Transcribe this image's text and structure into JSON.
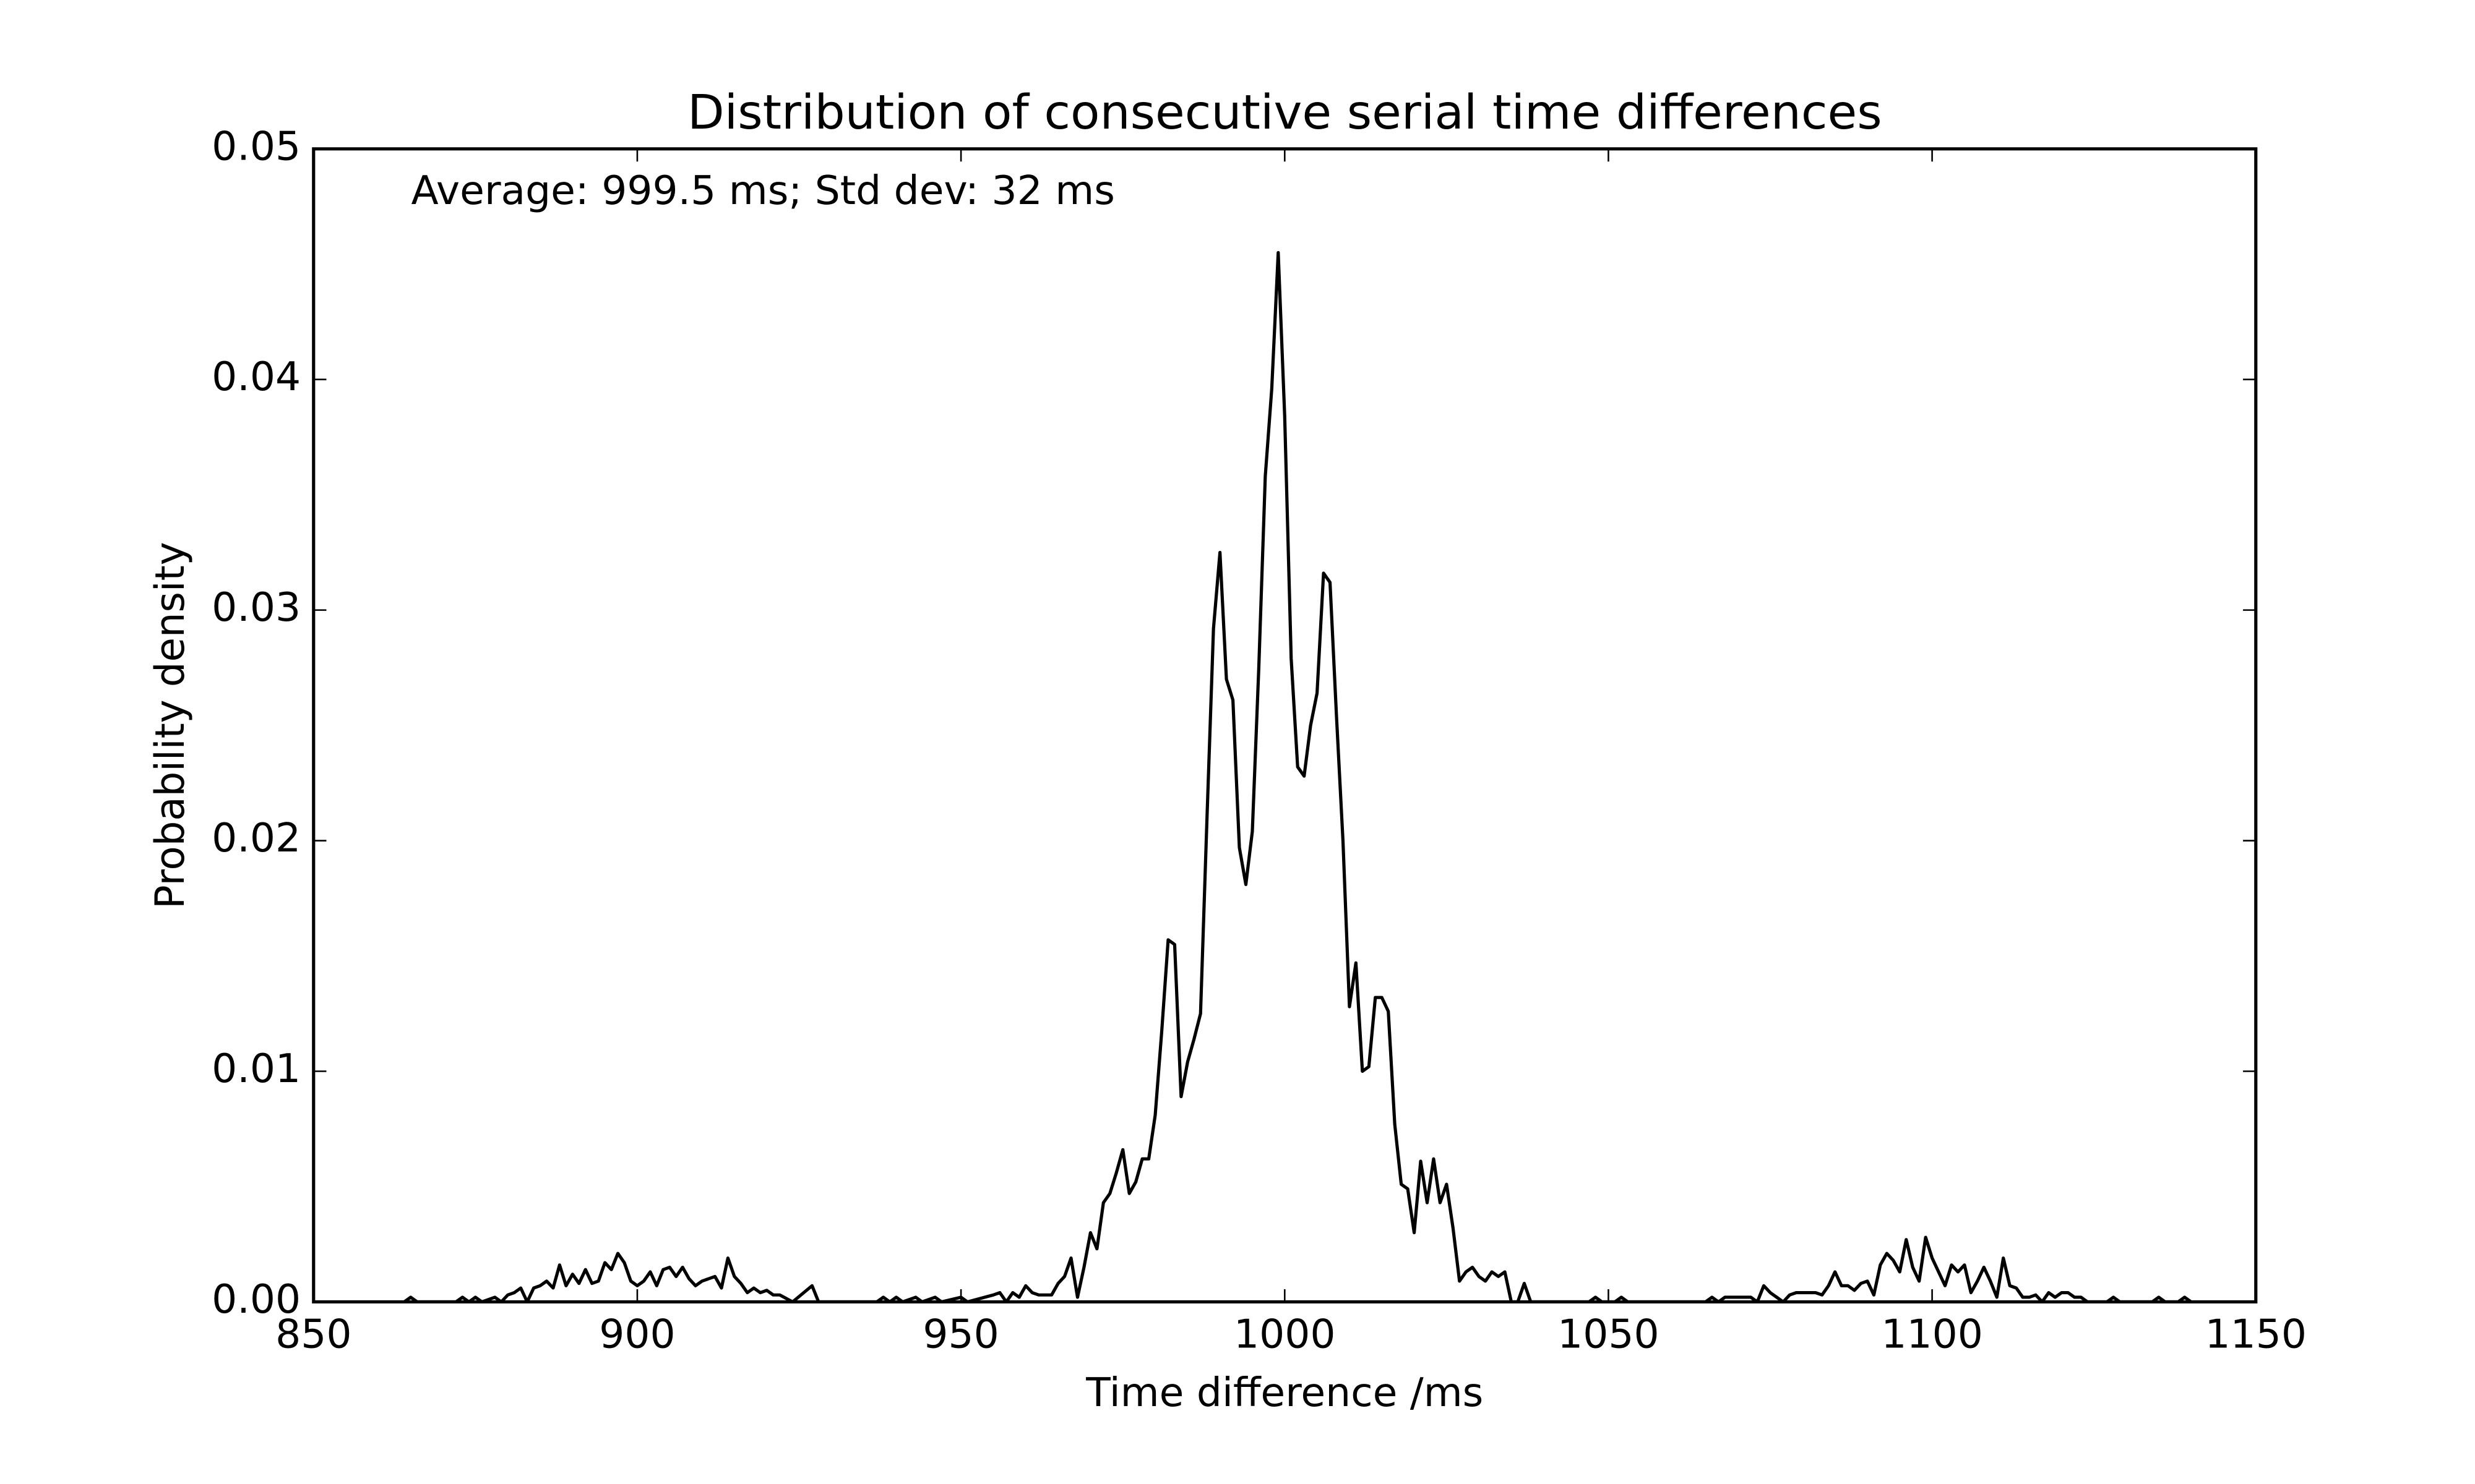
{
  "chart_data": {
    "type": "line",
    "title": "Distribution of consecutive serial time differences",
    "annotation": "Average: 999.5 ms;  Std dev: 32 ms",
    "xlabel": "Time difference /ms",
    "ylabel": "Probability density",
    "color": "#000000",
    "grid": false,
    "xlim": [
      850,
      1150
    ],
    "xticks": [
      850,
      900,
      950,
      1000,
      1050,
      1100,
      1150
    ],
    "ylim": [
      0,
      0.05
    ],
    "yticks": [
      {
        "value": 0,
        "label": "0.00"
      },
      {
        "value": 0.01,
        "label": "0.01"
      },
      {
        "value": 0.02,
        "label": "0.02"
      },
      {
        "value": 0.03,
        "label": "0.03"
      },
      {
        "value": 0.04,
        "label": "0.04"
      },
      {
        "value": 0.05,
        "label": "0.05"
      }
    ],
    "x": [
      864,
      865,
      866,
      872,
      873,
      874,
      875,
      876,
      878,
      879,
      880,
      881,
      882,
      883,
      884,
      885,
      886,
      887,
      888,
      889,
      890,
      891,
      892,
      893,
      894,
      895,
      896,
      897,
      898,
      899,
      900,
      901,
      902,
      903,
      904,
      905,
      906,
      907,
      908,
      909,
      910,
      911,
      912,
      913,
      914,
      915,
      916,
      917,
      918,
      919,
      920,
      921,
      922,
      924,
      927,
      928,
      937,
      938,
      939,
      940,
      941,
      943,
      944,
      946,
      947,
      950,
      951,
      955,
      956,
      957,
      958,
      959,
      960,
      961,
      962,
      964,
      965,
      966,
      967,
      968,
      969,
      970,
      971,
      972,
      973,
      974,
      975,
      976,
      977,
      978,
      979,
      980,
      981,
      982,
      983,
      984,
      985,
      986,
      987,
      988,
      989,
      990,
      991,
      992,
      993,
      994,
      995,
      996,
      997,
      998,
      999,
      1000,
      1001,
      1002,
      1003,
      1004,
      1005,
      1006,
      1007,
      1008,
      1009,
      1010,
      1011,
      1012,
      1013,
      1014,
      1015,
      1016,
      1017,
      1018,
      1019,
      1020,
      1021,
      1022,
      1023,
      1024,
      1025,
      1026,
      1027,
      1028,
      1029,
      1030,
      1031,
      1032,
      1033,
      1034,
      1035,
      1036,
      1037,
      1038,
      1047,
      1048,
      1049,
      1051,
      1052,
      1053,
      1065,
      1066,
      1067,
      1068,
      1072,
      1073,
      1074,
      1075,
      1076,
      1077,
      1078,
      1079,
      1082,
      1083,
      1084,
      1085,
      1086,
      1087,
      1088,
      1089,
      1090,
      1091,
      1092,
      1093,
      1094,
      1095,
      1096,
      1097,
      1098,
      1099,
      1100,
      1101,
      1102,
      1103,
      1104,
      1105,
      1106,
      1107,
      1108,
      1109,
      1110,
      1111,
      1112,
      1113,
      1114,
      1115,
      1116,
      1117,
      1118,
      1119,
      1120,
      1121,
      1122,
      1123,
      1124,
      1127,
      1128,
      1129,
      1134,
      1135,
      1136,
      1138,
      1139,
      1140
    ],
    "values": [
      0,
      0.0002,
      0,
      0,
      0.0002,
      0,
      0.0002,
      0,
      0.0002,
      0,
      0.0003,
      0.0004,
      0.0006,
      0,
      0.0006,
      0.0007,
      0.0009,
      0.0006,
      0.0016,
      0.0007,
      0.0012,
      0.0008,
      0.0014,
      0.0008,
      0.0009,
      0.0017,
      0.0014,
      0.0021,
      0.0017,
      0.0009,
      0.0007,
      0.0009,
      0.0013,
      0.0007,
      0.0014,
      0.0015,
      0.0011,
      0.0015,
      0.001,
      0.0007,
      0.0009,
      0.001,
      0.0011,
      0.0006,
      0.0019,
      0.0011,
      0.0008,
      0.0004,
      0.0006,
      0.0004,
      0.0005,
      0.0003,
      0.0003,
      0,
      0.0007,
      0,
      0,
      0.0002,
      0,
      0.0002,
      0,
      0.0002,
      0,
      0.0002,
      0,
      0.0002,
      0,
      0.0003,
      0.0004,
      0,
      0.0004,
      0.0002,
      0.0007,
      0.0004,
      0.0003,
      0.0003,
      0.0008,
      0.0011,
      0.0019,
      0.0002,
      0.0015,
      0.003,
      0.0023,
      0.0043,
      0.0047,
      0.0056,
      0.0066,
      0.0047,
      0.0052,
      0.0062,
      0.0062,
      0.0081,
      0.0117,
      0.0157,
      0.0155,
      0.0089,
      0.0104,
      0.0114,
      0.0125,
      0.021,
      0.0292,
      0.0325,
      0.027,
      0.0261,
      0.0197,
      0.0181,
      0.0204,
      0.0275,
      0.0358,
      0.0396,
      0.0455,
      0.0384,
      0.0279,
      0.0232,
      0.0228,
      0.025,
      0.0264,
      0.0316,
      0.0312,
      0.0254,
      0.02,
      0.0128,
      0.0147,
      0.01,
      0.0102,
      0.0132,
      0.0132,
      0.0126,
      0.0077,
      0.0051,
      0.0049,
      0.003,
      0.0061,
      0.0043,
      0.0062,
      0.0043,
      0.0051,
      0.0032,
      0.0009,
      0.0013,
      0.0015,
      0.0011,
      0.0009,
      0.0013,
      0.0011,
      0.0013,
      0,
      0,
      0.0008,
      0,
      0,
      0.0002,
      0,
      0,
      0.0002,
      0,
      0,
      0.0002,
      0,
      0.0002,
      0.0002,
      0,
      0.0007,
      0.0004,
      0.0002,
      0,
      0.0003,
      0.0004,
      0.0004,
      0.0003,
      0.0007,
      0.0013,
      0.0007,
      0.0007,
      0.0005,
      0.0008,
      0.0009,
      0.0003,
      0.0016,
      0.0021,
      0.0018,
      0.0013,
      0.0027,
      0.0015,
      0.0009,
      0.0028,
      0.0019,
      0.0013,
      0.0007,
      0.0016,
      0.0013,
      0.0016,
      0.0004,
      0.0009,
      0.0015,
      0.0009,
      0.0002,
      0.0019,
      0.0007,
      0.0006,
      0.0002,
      0.0002,
      0.0003,
      0,
      0.0004,
      0.0002,
      0.0004,
      0.0004,
      0.0002,
      0.0002,
      0,
      0,
      0.0002,
      0,
      0,
      0.0002,
      0,
      0,
      0.0002,
      0
    ]
  }
}
